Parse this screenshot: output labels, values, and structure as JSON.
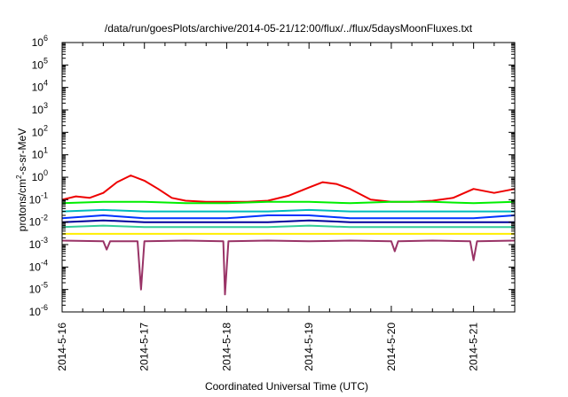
{
  "chart_data": {
    "type": "line",
    "title": "/data/run/goesPlots/archive/2014-05-21/12:00/flux/../flux/5daysMoonFluxes.txt",
    "xlabel": "Coordinated Universal Time (UTC)",
    "ylabel": {
      "prefix": "protons/cm",
      "sup": "2",
      "suffix": "-s-sr-MeV"
    },
    "yscale": "log",
    "ylim_exp": [
      -6,
      6
    ],
    "ytick_base": "10",
    "ytick_exponents": [
      "-6",
      "-5",
      "-4",
      "-3",
      "-2",
      "-1",
      "0",
      "1",
      "2",
      "3",
      "4",
      "5",
      "6"
    ],
    "xlim": [
      "2014-05-16",
      "2014-05-21T12:00"
    ],
    "xtick_dates": [
      "2014-05-16",
      "2014-05-17",
      "2014-05-18",
      "2014-05-19",
      "2014-05-20",
      "2014-05-21"
    ],
    "xtick_labels": [
      "2014-5-16",
      "2014-5-17",
      "2014-5-18",
      "2014-5-19",
      "2014-5-20",
      "2014-5-21"
    ],
    "grid": false,
    "legend": "none",
    "series": [
      {
        "color": "#ee0000",
        "points": [
          [
            "2014-05-16T00:00",
            0.1
          ],
          [
            "2014-05-16T04:00",
            0.14
          ],
          [
            "2014-05-16T08:00",
            0.12
          ],
          [
            "2014-05-16T12:00",
            0.2
          ],
          [
            "2014-05-16T16:00",
            0.6
          ],
          [
            "2014-05-16T20:00",
            1.2
          ],
          [
            "2014-05-17T00:00",
            0.7
          ],
          [
            "2014-05-17T04:00",
            0.3
          ],
          [
            "2014-05-17T08:00",
            0.12
          ],
          [
            "2014-05-17T12:00",
            0.09
          ],
          [
            "2014-05-17T18:00",
            0.08
          ],
          [
            "2014-05-18T00:00",
            0.08
          ],
          [
            "2014-05-18T06:00",
            0.08
          ],
          [
            "2014-05-18T12:00",
            0.09
          ],
          [
            "2014-05-18T18:00",
            0.15
          ],
          [
            "2014-05-19T00:00",
            0.35
          ],
          [
            "2014-05-19T04:00",
            0.6
          ],
          [
            "2014-05-19T08:00",
            0.5
          ],
          [
            "2014-05-19T12:00",
            0.3
          ],
          [
            "2014-05-19T18:00",
            0.1
          ],
          [
            "2014-05-20T00:00",
            0.08
          ],
          [
            "2014-05-20T06:00",
            0.08
          ],
          [
            "2014-05-20T12:00",
            0.09
          ],
          [
            "2014-05-20T18:00",
            0.12
          ],
          [
            "2014-05-21T00:00",
            0.3
          ],
          [
            "2014-05-21T06:00",
            0.2
          ],
          [
            "2014-05-21T12:00",
            0.3
          ]
        ]
      },
      {
        "color": "#00ee00",
        "points": [
          [
            "2014-05-16T00:00",
            0.07
          ],
          [
            "2014-05-16T12:00",
            0.08
          ],
          [
            "2014-05-17T00:00",
            0.08
          ],
          [
            "2014-05-17T12:00",
            0.07
          ],
          [
            "2014-05-18T00:00",
            0.07
          ],
          [
            "2014-05-18T12:00",
            0.08
          ],
          [
            "2014-05-19T00:00",
            0.08
          ],
          [
            "2014-05-19T12:00",
            0.07
          ],
          [
            "2014-05-20T00:00",
            0.08
          ],
          [
            "2014-05-20T12:00",
            0.08
          ],
          [
            "2014-05-21T00:00",
            0.07
          ],
          [
            "2014-05-21T12:00",
            0.08
          ]
        ]
      },
      {
        "color": "#00bbbb",
        "points": [
          [
            "2014-05-16T00:00",
            0.03
          ],
          [
            "2014-05-16T12:00",
            0.035
          ],
          [
            "2014-05-17T00:00",
            0.03
          ],
          [
            "2014-05-17T12:00",
            0.03
          ],
          [
            "2014-05-18T00:00",
            0.03
          ],
          [
            "2014-05-18T12:00",
            0.03
          ],
          [
            "2014-05-19T00:00",
            0.035
          ],
          [
            "2014-05-19T12:00",
            0.03
          ],
          [
            "2014-05-20T00:00",
            0.03
          ],
          [
            "2014-05-20T12:00",
            0.03
          ],
          [
            "2014-05-21T00:00",
            0.03
          ],
          [
            "2014-05-21T12:00",
            0.03
          ]
        ]
      },
      {
        "color": "#0033ff",
        "points": [
          [
            "2014-05-16T00:00",
            0.015
          ],
          [
            "2014-05-16T12:00",
            0.02
          ],
          [
            "2014-05-17T00:00",
            0.015
          ],
          [
            "2014-05-17T12:00",
            0.015
          ],
          [
            "2014-05-18T00:00",
            0.015
          ],
          [
            "2014-05-18T12:00",
            0.02
          ],
          [
            "2014-05-19T00:00",
            0.02
          ],
          [
            "2014-05-19T12:00",
            0.015
          ],
          [
            "2014-05-20T00:00",
            0.015
          ],
          [
            "2014-05-20T12:00",
            0.015
          ],
          [
            "2014-05-21T00:00",
            0.015
          ],
          [
            "2014-05-21T12:00",
            0.02
          ]
        ]
      },
      {
        "color": "#000099",
        "points": [
          [
            "2014-05-16T00:00",
            0.01
          ],
          [
            "2014-05-16T12:00",
            0.012
          ],
          [
            "2014-05-17T00:00",
            0.01
          ],
          [
            "2014-05-17T12:00",
            0.01
          ],
          [
            "2014-05-18T00:00",
            0.01
          ],
          [
            "2014-05-18T12:00",
            0.01
          ],
          [
            "2014-05-19T00:00",
            0.012
          ],
          [
            "2014-05-19T12:00",
            0.01
          ],
          [
            "2014-05-20T00:00",
            0.01
          ],
          [
            "2014-05-20T12:00",
            0.01
          ],
          [
            "2014-05-21T00:00",
            0.01
          ],
          [
            "2014-05-21T12:00",
            0.01
          ]
        ]
      },
      {
        "color": "#33cc99",
        "points": [
          [
            "2014-05-16T00:00",
            0.006
          ],
          [
            "2014-05-16T12:00",
            0.007
          ],
          [
            "2014-05-17T00:00",
            0.006
          ],
          [
            "2014-05-17T12:00",
            0.006
          ],
          [
            "2014-05-18T00:00",
            0.006
          ],
          [
            "2014-05-18T12:00",
            0.006
          ],
          [
            "2014-05-19T00:00",
            0.007
          ],
          [
            "2014-05-19T12:00",
            0.006
          ],
          [
            "2014-05-20T00:00",
            0.006
          ],
          [
            "2014-05-20T12:00",
            0.006
          ],
          [
            "2014-05-21T00:00",
            0.006
          ],
          [
            "2014-05-21T12:00",
            0.006
          ]
        ]
      },
      {
        "color": "#ffee00",
        "points": [
          [
            "2014-05-16T00:00",
            0.003
          ],
          [
            "2014-05-16T12:00",
            0.003
          ],
          [
            "2014-05-17T00:00",
            0.003
          ],
          [
            "2014-05-17T12:00",
            0.003
          ],
          [
            "2014-05-18T00:00",
            0.003
          ],
          [
            "2014-05-18T12:00",
            0.003
          ],
          [
            "2014-05-19T00:00",
            0.003
          ],
          [
            "2014-05-19T12:00",
            0.003
          ],
          [
            "2014-05-20T00:00",
            0.003
          ],
          [
            "2014-05-20T12:00",
            0.003
          ],
          [
            "2014-05-21T00:00",
            0.003
          ],
          [
            "2014-05-21T12:00",
            0.003
          ]
        ]
      },
      {
        "color": "#993366",
        "points": [
          [
            "2014-05-16T00:00",
            0.0015
          ],
          [
            "2014-05-16T12:00",
            0.0014
          ],
          [
            "2014-05-16T13:00",
            0.0006
          ],
          [
            "2014-05-16T14:00",
            0.0014
          ],
          [
            "2014-05-16T22:00",
            0.0014
          ],
          [
            "2014-05-16T23:00",
            1e-05
          ],
          [
            "2014-05-17T00:00",
            0.0014
          ],
          [
            "2014-05-17T12:00",
            0.0015
          ],
          [
            "2014-05-17T23:00",
            0.0014
          ],
          [
            "2014-05-17T23:30",
            6e-06
          ],
          [
            "2014-05-18T00:30",
            0.0014
          ],
          [
            "2014-05-18T12:00",
            0.0015
          ],
          [
            "2014-05-19T00:00",
            0.0014
          ],
          [
            "2014-05-19T12:00",
            0.0015
          ],
          [
            "2014-05-20T00:00",
            0.0014
          ],
          [
            "2014-05-20T01:00",
            0.0005
          ],
          [
            "2014-05-20T02:00",
            0.0014
          ],
          [
            "2014-05-20T12:00",
            0.0015
          ],
          [
            "2014-05-20T23:00",
            0.0014
          ],
          [
            "2014-05-21T00:00",
            0.0002
          ],
          [
            "2014-05-21T01:00",
            0.0014
          ],
          [
            "2014-05-21T12:00",
            0.0015
          ]
        ]
      }
    ]
  }
}
